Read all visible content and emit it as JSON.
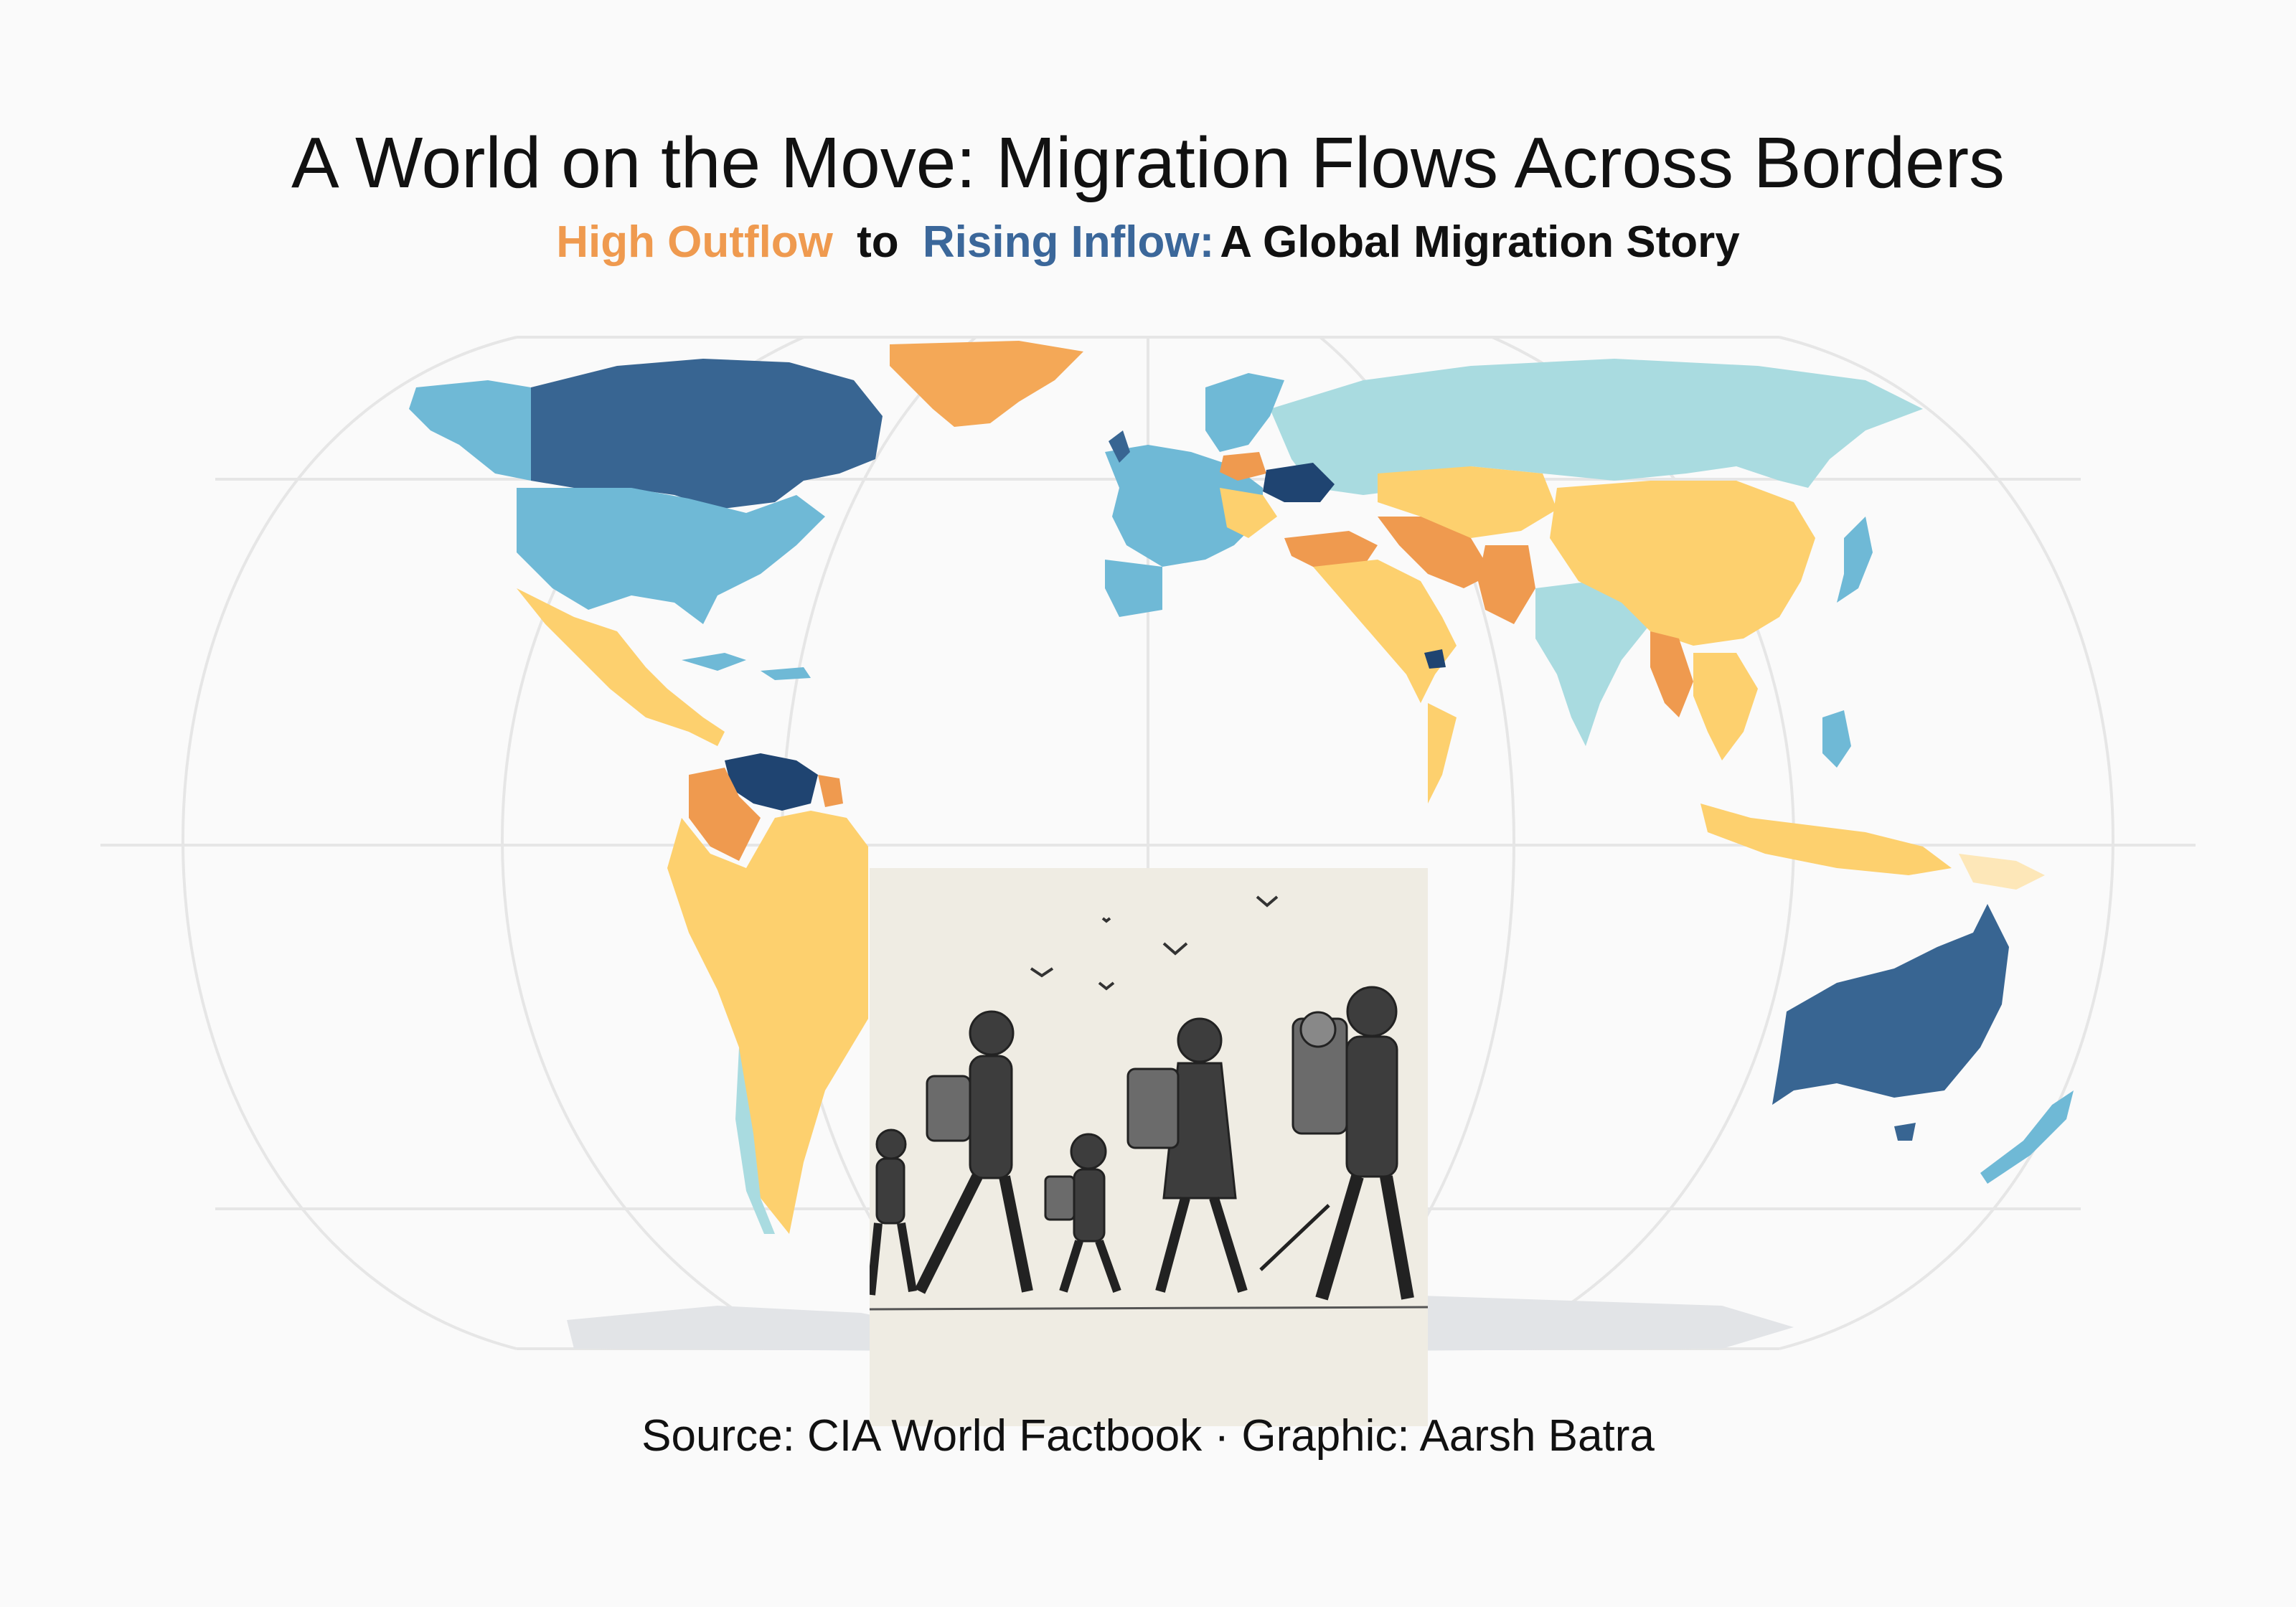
{
  "title": "A World on the Move: Migration Flows Across Borders",
  "subtitle": {
    "high_outflow": "High Outflow",
    "to": "to",
    "rising_inflow": "Rising Inflow:",
    "rest": "A Global Migration Story"
  },
  "colors": {
    "high_outflow": "#ef9a4f",
    "moderate_outflow": "#fdd06e",
    "slight_outflow": "#fde7b8",
    "neutral": "#a9dbe0",
    "moderate_inflow": "#6fb9d6",
    "rising_inflow": "#386592",
    "high_inflow": "#1f4471",
    "antarctica": "#e2e4e7",
    "graticule": "#e6e6e6"
  },
  "map": {
    "projection": "Robinson",
    "highlighted_countries": {
      "high_inflow": [
        "Venezuela",
        "Ukraine",
        "Qatar"
      ],
      "rising_inflow": [
        "Canada",
        "Australia"
      ],
      "high_outflow": [
        "Colombia",
        "Poland",
        "Pakistan",
        "Myanmar",
        "Iran"
      ]
    }
  },
  "illustration": {
    "description_icon": "migrating-family-sketch-icon"
  },
  "source": "Source: CIA World Factbook · Graphic: Aarsh Batra"
}
